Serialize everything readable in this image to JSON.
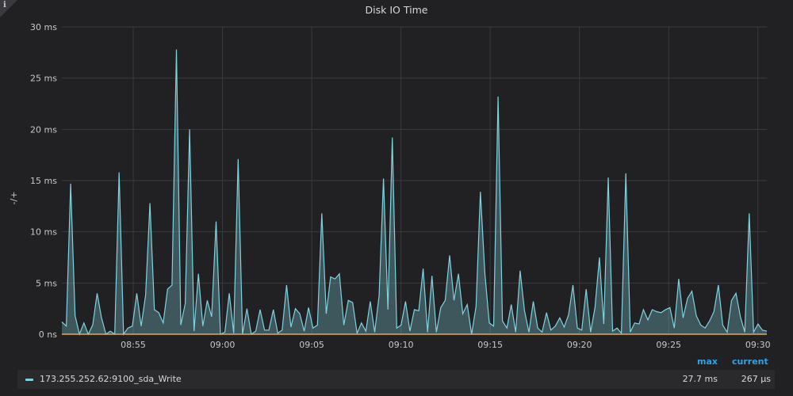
{
  "panel": {
    "title": "Disk IO Time",
    "info_icon": "i"
  },
  "legend": {
    "headers": {
      "max": "max",
      "current": "current"
    },
    "series_name": "173.255.252.62:9100_sda_Write",
    "max": "27.7 ms",
    "current": "267 µs",
    "series_color": "#7fd3e0"
  },
  "chart_data": {
    "type": "area",
    "title": "Disk IO Time",
    "ylabel": "-/+",
    "xlabel": "",
    "ylim": [
      0,
      30
    ],
    "y_ticks": [
      "0 ns",
      "5 ms",
      "10 ms",
      "15 ms",
      "20 ms",
      "25 ms",
      "30 ms"
    ],
    "x_ticks": [
      "08:55",
      "09:00",
      "09:05",
      "09:10",
      "09:15",
      "09:20",
      "09:25",
      "09:30"
    ],
    "x_start": "08:51",
    "x_end": "09:30:30",
    "grid": true,
    "series": [
      {
        "name": "173.255.252.62:9100_sda_Write",
        "color": "#7fd3e0",
        "values": [
          1.2,
          0.8,
          14.7,
          1.8,
          0,
          1.1,
          0,
          0.9,
          4.0,
          1.6,
          0,
          0.3,
          0,
          15.8,
          0,
          0.6,
          0.8,
          4.0,
          0.8,
          3.8,
          12.8,
          2.4,
          2.1,
          1.1,
          4.4,
          4.8,
          27.8,
          0.9,
          3.0,
          20.0,
          0.3,
          5.9,
          0.8,
          3.3,
          1.7,
          11.0,
          0,
          0.2,
          4.0,
          0.1,
          17.1,
          0,
          2.5,
          0,
          0.3,
          2.4,
          0.4,
          0.4,
          2.4,
          0.1,
          0.4,
          4.8,
          0.7,
          2.5,
          2.0,
          0.3,
          2.6,
          0.6,
          0.9,
          11.8,
          2.0,
          5.6,
          5.4,
          5.9,
          0.9,
          3.3,
          3.1,
          0.1,
          1.1,
          0.3,
          3.2,
          0.2,
          3.8,
          15.2,
          2.4,
          19.2,
          0.6,
          0.9,
          3.2,
          0.3,
          2.4,
          2.3,
          6.4,
          0.2,
          5.7,
          0.2,
          2.6,
          3.3,
          7.7,
          3.3,
          5.9,
          2.0,
          2.9,
          0,
          2.7,
          13.9,
          6.0,
          1.1,
          0.8,
          23.2,
          1.3,
          0.6,
          2.9,
          0.2,
          6.2,
          2.3,
          0.2,
          3.2,
          0.6,
          0.2,
          2.1,
          0.4,
          0.8,
          1.6,
          0.7,
          1.9,
          4.8,
          0.6,
          0.4,
          4.4,
          0.2,
          2.6,
          7.5,
          1.0,
          15.3,
          0.3,
          0.6,
          0.1,
          15.7,
          0.2,
          1.1,
          1.0,
          2.4,
          1.4,
          2.4,
          2.2,
          2.1,
          2.4,
          2.6,
          0.6,
          5.4,
          1.6,
          3.5,
          4.2,
          1.8,
          0.9,
          0.6,
          1.3,
          2.2,
          4.8,
          0.9,
          0.2,
          3.3,
          4.0,
          1.7,
          0.2,
          11.8,
          0.2,
          1.0,
          0.4,
          0.3
        ]
      },
      {
        "name": "",
        "color": "#e5a84d",
        "constant": 0
      }
    ]
  }
}
